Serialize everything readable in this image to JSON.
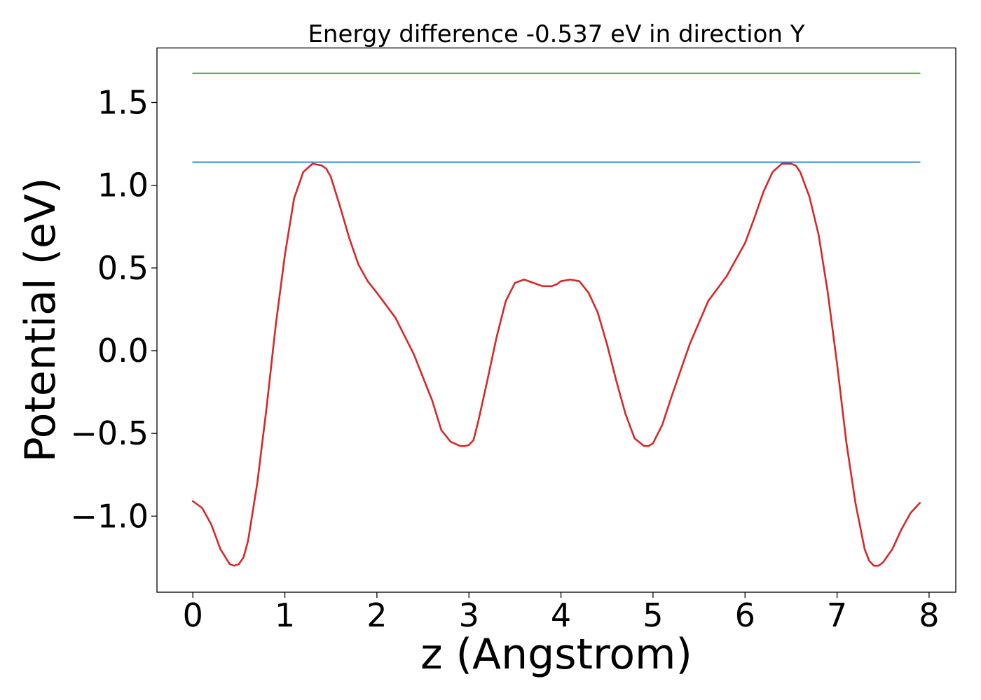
{
  "chart_data": {
    "type": "line",
    "title": "Energy difference -0.537 eV in direction Y",
    "xlabel": "z (Angstrom)",
    "ylabel": "Potential (eV)",
    "xlim": [
      -0.39,
      8.29
    ],
    "ylim": [
      -1.46,
      1.83
    ],
    "x_ticks": [
      0,
      1,
      2,
      3,
      4,
      5,
      6,
      7,
      8
    ],
    "x_tick_labels": [
      "0",
      "1",
      "2",
      "3",
      "4",
      "5",
      "6",
      "7",
      "8"
    ],
    "y_ticks": [
      -1.0,
      -0.5,
      0.0,
      0.5,
      1.0,
      1.5
    ],
    "y_tick_labels": [
      "−1.0",
      "−0.5",
      "0.0",
      "0.5",
      "1.0",
      "1.5"
    ],
    "grid": false,
    "series": [
      {
        "color": "#d62728",
        "x": [
          0.0,
          0.1,
          0.2,
          0.3,
          0.4,
          0.45,
          0.5,
          0.55,
          0.6,
          0.7,
          0.8,
          0.9,
          1.0,
          1.1,
          1.2,
          1.3,
          1.4,
          1.45,
          1.5,
          1.6,
          1.7,
          1.8,
          1.9,
          2.0,
          2.2,
          2.4,
          2.6,
          2.7,
          2.8,
          2.9,
          2.95,
          3.0,
          3.05,
          3.1,
          3.2,
          3.3,
          3.4,
          3.5,
          3.6,
          3.7,
          3.8,
          3.9,
          3.95,
          4.0,
          4.1,
          4.2,
          4.3,
          4.4,
          4.5,
          4.6,
          4.7,
          4.8,
          4.9,
          4.95,
          5.0,
          5.1,
          5.2,
          5.4,
          5.6,
          5.8,
          6.0,
          6.1,
          6.2,
          6.3,
          6.4,
          6.5,
          6.55,
          6.6,
          6.7,
          6.8,
          6.9,
          7.0,
          7.1,
          7.2,
          7.3,
          7.35,
          7.4,
          7.45,
          7.5,
          7.6,
          7.7,
          7.8,
          7.9
        ],
        "values": [
          -0.91,
          -0.95,
          -1.05,
          -1.2,
          -1.29,
          -1.3,
          -1.29,
          -1.25,
          -1.15,
          -0.8,
          -0.35,
          0.15,
          0.58,
          0.92,
          1.08,
          1.13,
          1.12,
          1.1,
          1.05,
          0.87,
          0.68,
          0.52,
          0.42,
          0.35,
          0.2,
          -0.02,
          -0.3,
          -0.48,
          -0.55,
          -0.575,
          -0.577,
          -0.57,
          -0.54,
          -0.43,
          -0.18,
          0.08,
          0.3,
          0.41,
          0.43,
          0.41,
          0.39,
          0.39,
          0.4,
          0.42,
          0.43,
          0.42,
          0.35,
          0.23,
          0.04,
          -0.18,
          -0.38,
          -0.53,
          -0.575,
          -0.577,
          -0.56,
          -0.45,
          -0.28,
          0.04,
          0.3,
          0.45,
          0.65,
          0.8,
          0.96,
          1.08,
          1.13,
          1.13,
          1.12,
          1.08,
          0.93,
          0.7,
          0.35,
          -0.08,
          -0.55,
          -0.92,
          -1.2,
          -1.27,
          -1.3,
          -1.3,
          -1.28,
          -1.2,
          -1.08,
          -0.98,
          -0.92
        ]
      },
      {
        "color": "#1f77b4",
        "x": [
          0.0,
          7.9
        ],
        "values": [
          1.14,
          1.14
        ]
      },
      {
        "color": "#2ca02c",
        "x": [
          0.0,
          7.9
        ],
        "values": [
          1.677,
          1.677
        ]
      }
    ]
  }
}
